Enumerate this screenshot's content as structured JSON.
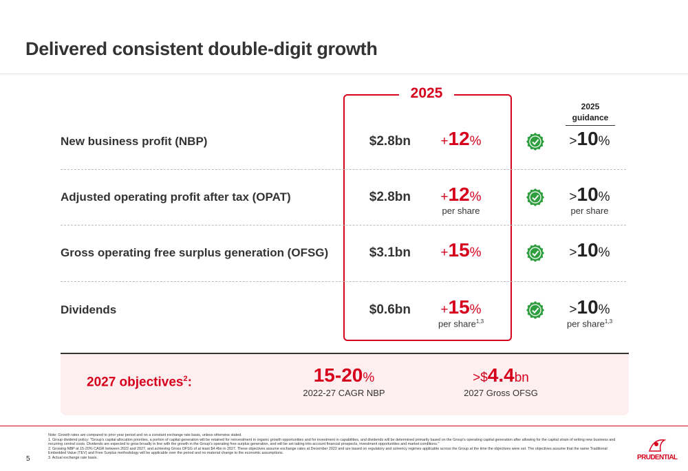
{
  "header": {
    "title": "Delivered consistent double-digit growth"
  },
  "table": {
    "year": "2025",
    "guidance_year": "2025",
    "guidance_label": "guidance",
    "rows": [
      {
        "label": "New business profit (NBP)",
        "value": "$2.8bn",
        "growth": {
          "sign": "+",
          "number": "12",
          "unit": "%"
        },
        "guidance": {
          "sign": ">",
          "number": "10",
          "unit": "%"
        }
      },
      {
        "label": "Adjusted operating profit after tax (OPAT)",
        "value": "$2.8bn",
        "growth": {
          "sign": "+",
          "number": "12",
          "unit": "%",
          "note": "per share"
        },
        "guidance": {
          "sign": ">",
          "number": "10",
          "unit": "%",
          "note": "per share"
        }
      },
      {
        "label": "Gross operating free surplus generation (OFSG)",
        "value": "$3.1bn",
        "growth": {
          "sign": "+",
          "number": "15",
          "unit": "%"
        },
        "guidance": {
          "sign": ">",
          "number": "10",
          "unit": "%"
        }
      },
      {
        "label": "Dividends",
        "value": "$0.6bn",
        "growth": {
          "sign": "+",
          "number": "15",
          "unit": "%",
          "note": "per share",
          "note_sup": "1,3"
        },
        "guidance": {
          "sign": ">",
          "number": "10",
          "unit": "%",
          "note": "per share",
          "note_sup": "1,3"
        }
      }
    ]
  },
  "objectives": {
    "label": "2027 objectives",
    "label_sup": "2",
    "label_tail": ":",
    "items": [
      {
        "prefix": "",
        "number": "15-20",
        "unit": "%",
        "caption": "2022-27 CAGR NBP"
      },
      {
        "prefix": ">$",
        "number": "4.4",
        "unit": "bn",
        "caption": "2027 Gross OFSG"
      }
    ]
  },
  "footer": {
    "page": "5",
    "logo": "PRUDENTIAL",
    "notes": [
      "Note: Growth rates are compared to prior year period and on a constant exchange rate basis, unless otherwise stated.",
      "1.  Group dividend policy: \"Group's capital allocation priorities, a portion of capital generation will be retained for reinvestment in organic growth opportunities and for investment in capabilities, and dividends will be determined primarily based on the Group's operating capital generation after allowing for the capital strain of writing new business and recurring central costs. Dividends are expected to grow broadly in line with the growth in the Group's operating free surplus generation, and will be set taking into account financial prospects, investment opportunities and market conditions.\"",
      "2.  Growing NBP at 15-20% CAGR between 2022 and 2027, and achieving Gross OFSG of at least $4.4bn in 2027. These objectives assume exchange rates at December 2022 and are based on regulatory and solvency regimes applicable across the Group at the time the objectives were set. The objectives assume that the same Traditional Embedded Value (TEV) and Free Surplus methodology will be applicable over the period and no material change to the economic assumptions.",
      "3.  Actual exchange rate basis."
    ]
  }
}
